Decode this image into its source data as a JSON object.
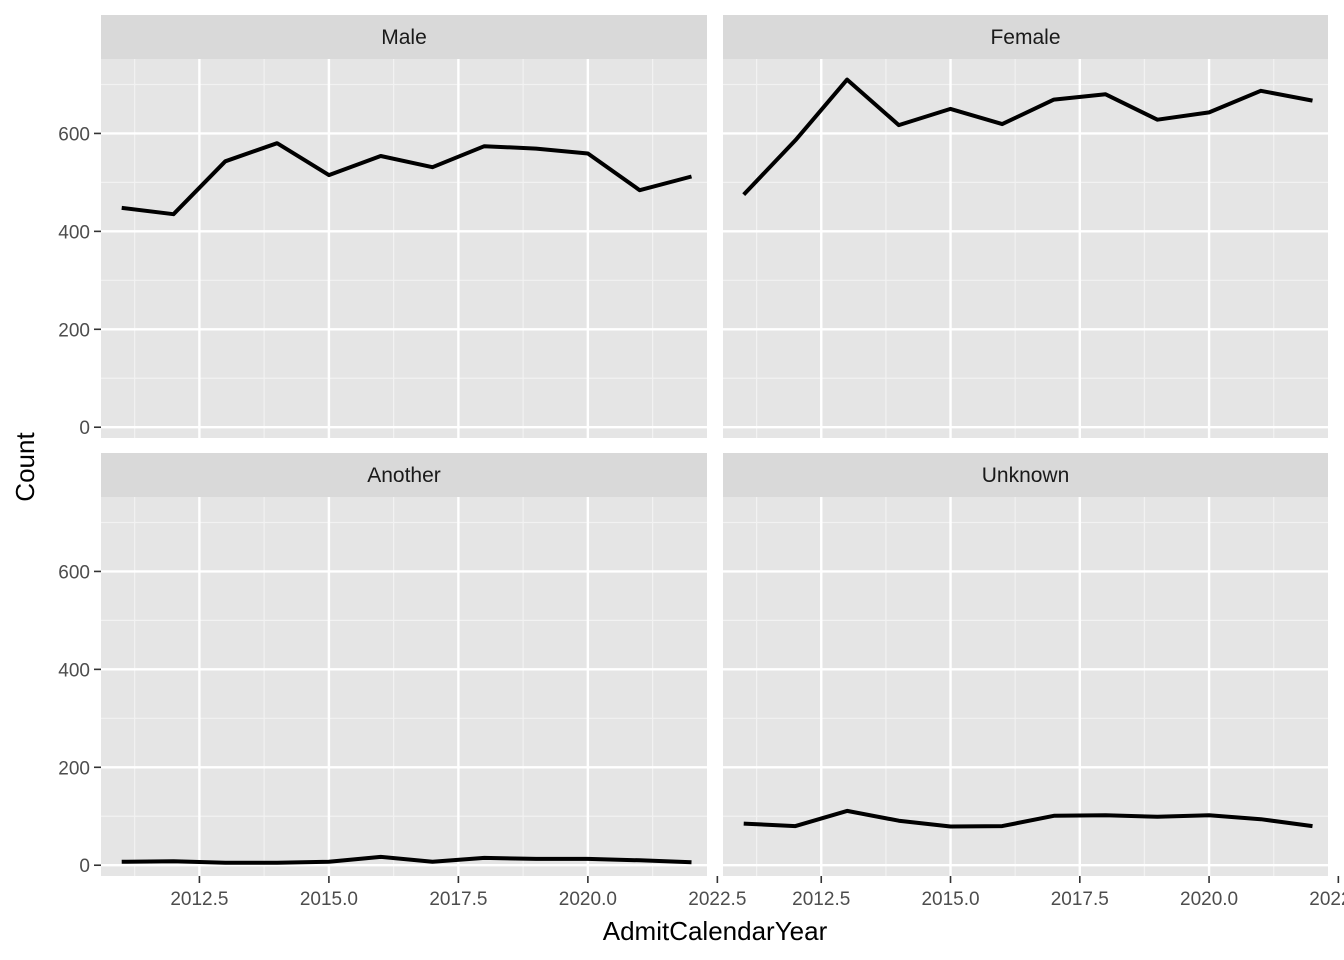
{
  "chart_data": {
    "type": "line",
    "layout": "facet_wrap 2x2",
    "xlabel": "AdmitCalendarYear",
    "ylabel": "Count",
    "xlim": [
      2010.6,
      2022.3
    ],
    "ylim": [
      -22,
      752
    ],
    "x_ticks": [
      2012.5,
      2015.0,
      2017.5,
      2020.0,
      2022.5
    ],
    "x_tick_labels": [
      "2012.5",
      "2015.0",
      "2017.5",
      "2020.0",
      "2022.5"
    ],
    "y_ticks": [
      0,
      200,
      400,
      600
    ],
    "y_tick_labels": [
      "0",
      "200",
      "400",
      "600"
    ],
    "x": [
      2011,
      2012,
      2013,
      2014,
      2015,
      2016,
      2017,
      2018,
      2019,
      2020,
      2021,
      2022
    ],
    "grid": true,
    "line_color": "#000000",
    "panel_background": "#e5e5e5",
    "strip_background": "#d9d9d9",
    "series": [
      {
        "name": "Male",
        "values": [
          448,
          435,
          543,
          580,
          515,
          554,
          531,
          574,
          569,
          559,
          484,
          512
        ]
      },
      {
        "name": "Female",
        "values": [
          475,
          586,
          710,
          617,
          650,
          619,
          669,
          680,
          628,
          643,
          687,
          667
        ]
      },
      {
        "name": "Another",
        "values": [
          7,
          8,
          5,
          5,
          7,
          17,
          7,
          15,
          13,
          13,
          10,
          6
        ]
      },
      {
        "name": "Unknown",
        "values": [
          85,
          80,
          111,
          91,
          79,
          80,
          101,
          102,
          99,
          102,
          94,
          80
        ]
      }
    ]
  }
}
